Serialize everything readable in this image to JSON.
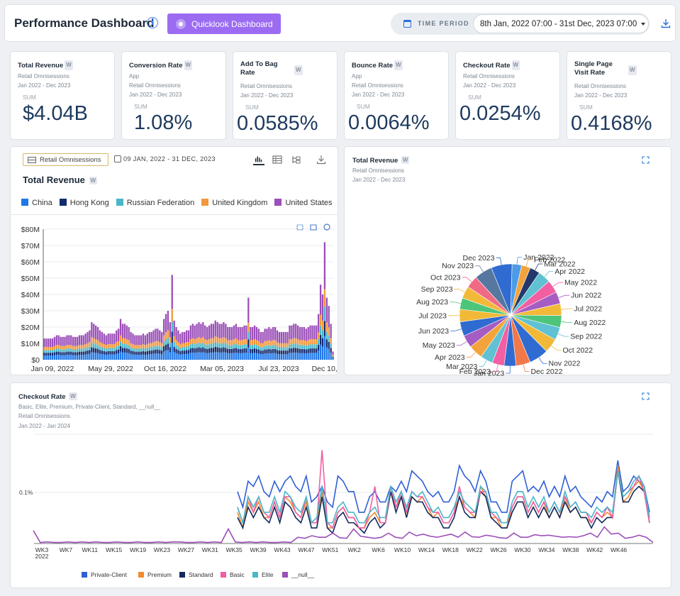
{
  "header": {
    "title": "Performance Dashboard",
    "info_icon": "info-icon",
    "quicklook_label": "Quicklook Dashboard",
    "time_period_label": "TIME PERIOD",
    "time_period_value": "8th Jan, 2022 07:00 - 31st Dec, 2023 07:00",
    "download_icon": "download-icon"
  },
  "kpis": [
    {
      "title": "Total Revenue",
      "badge": "W",
      "subs": [
        "Retail Omnisessions",
        "Jan 2022 - Dec 2023"
      ],
      "sum_label": "SUM",
      "value": "$4.04B"
    },
    {
      "title": "Conversion Rate",
      "badge": "W",
      "subs": [
        "App",
        "Retail Omnisessions",
        "Jan 2022 - Dec 2023"
      ],
      "sum_label": "SUM",
      "value": "1.08%"
    },
    {
      "title_lines": [
        "Add To Bag",
        "Rate"
      ],
      "badge": "W",
      "subs": [
        "Retail Omnisessions",
        "Jan 2022 - Dec 2023"
      ],
      "sum_label": "SUM",
      "value": "0.0585%"
    },
    {
      "title": "Bounce Rate",
      "badge": "W",
      "subs": [
        "App",
        "Retail Omnisessions",
        "Jan 2022 - Dec 2023"
      ],
      "sum_label": "SUM",
      "value": "0.0064%"
    },
    {
      "title": "Checkout Rate",
      "badge": "W",
      "subs": [
        "Retail Omnisessions",
        "Jan 2022 - Dec 2023"
      ],
      "sum_label": "SUM",
      "value": "0.0254%"
    },
    {
      "title_lines": [
        "Single Page",
        "Visit Rate"
      ],
      "badge": "W",
      "subs": [
        "Retail Omnisessions",
        "Jan 2022 - Dec 2023"
      ],
      "sum_label": "SUM",
      "value": "0.4168%"
    }
  ],
  "bar_panel": {
    "source_button": "Retail Omnisessions",
    "date_range": "09 JAN, 2022 - 31 DEC, 2023",
    "title": "Total Revenue",
    "badge": "W",
    "tools": [
      "bar-chart-icon",
      "table-icon",
      "tree-icon",
      "download-icon"
    ],
    "zoom_tools": [
      "zoom-select-icon",
      "zoom-back-icon",
      "reset-icon"
    ]
  },
  "pie_panel": {
    "title": "Total Revenue",
    "badge": "W",
    "subs": [
      "Retail Omnisessions",
      "Jan 2022 - Dec 2023"
    ]
  },
  "line_panel": {
    "title": "Checkout Rate",
    "badge": "W",
    "subs": [
      "Basic, Elite, Premium, Private-Client, Standard, __null__",
      "Retail Omnisessions",
      "Jan 2022 - Jan 2024"
    ]
  },
  "colors": {
    "accent": "#9b6cf2",
    "china": "#1f77e8",
    "hong_kong": "#132a6e",
    "russia": "#4ab7c9",
    "uk": "#f2973b",
    "us": "#9b4fb8"
  },
  "chart_data": [
    {
      "type": "bar",
      "stacked": true,
      "title": "Total Revenue",
      "ylim": [
        0,
        80
      ],
      "yticks": [
        "$0",
        "$10M",
        "$20M",
        "$30M",
        "$40M",
        "$50M",
        "$60M",
        "$70M",
        "$80M"
      ],
      "xticks": [
        "Jan 09, 2022",
        "May 29, 2022",
        "Oct 16, 2022",
        "Mar 05, 2023",
        "Jul 23, 2023",
        "Dec 10, 20"
      ],
      "legend": [
        "China",
        "Hong Kong",
        "Russian Federation",
        "United Kingdom",
        "United States"
      ],
      "totals": [
        13,
        13,
        13,
        13,
        13,
        14,
        15,
        15,
        14,
        14,
        14,
        15,
        15,
        15,
        14,
        14,
        14,
        15,
        15,
        15,
        16,
        17,
        18,
        23,
        22,
        21,
        20,
        18,
        17,
        16,
        15,
        16,
        16,
        16,
        16,
        18,
        19,
        25,
        22,
        22,
        21,
        20,
        17,
        16,
        15,
        15,
        15,
        15,
        16,
        15,
        16,
        17,
        17,
        18,
        19,
        19,
        18,
        17,
        25,
        28,
        30,
        23,
        52,
        24,
        20,
        18,
        16,
        17,
        17,
        18,
        18,
        21,
        22,
        21,
        22,
        23,
        22,
        23,
        21,
        20,
        21,
        22,
        22,
        24,
        23,
        22,
        22,
        23,
        22,
        20,
        20,
        20,
        21,
        22,
        20,
        20,
        20,
        21,
        21,
        38,
        20,
        20,
        21,
        20,
        19,
        17,
        17,
        19,
        19,
        20,
        19,
        20,
        20,
        18,
        17,
        17,
        17,
        17,
        17,
        21,
        21,
        22,
        22,
        21,
        20,
        20,
        20,
        19,
        20,
        21,
        21,
        21,
        21,
        28,
        46,
        40,
        72,
        38,
        33,
        22,
        5
      ],
      "shares": [
        0.2,
        0.13,
        0.12,
        0.15,
        0.4
      ]
    },
    {
      "type": "pie",
      "title": "Total Revenue",
      "categories": [
        "Jan 2022",
        "Feb 2022",
        "Mar 2022",
        "Apr 2022",
        "May 2022",
        "Jun 2022",
        "Jul 2022",
        "Aug 2022",
        "Sep 2022",
        "Oct 2022",
        "Nov 2022",
        "Dec 2022",
        "Jan 2023",
        "Feb 2023",
        "Mar 2023",
        "Apr 2023",
        "May 2023",
        "Jun 2023",
        "Jul 2023",
        "Aug 2023",
        "Sep 2023",
        "Oct 2023",
        "Nov 2023",
        "Dec 2023"
      ],
      "values": [
        3.2,
        3.0,
        3.4,
        4.2,
        4.3,
        4.0,
        4.0,
        4.0,
        4.3,
        4.8,
        6.5,
        4.8,
        4.0,
        4.0,
        4.2,
        4.8,
        4.2,
        4.8,
        4.2,
        3.8,
        4.1,
        4.1,
        6.0,
        7.0
      ],
      "colors": [
        "#4c9be8",
        "#f3a33b",
        "#23396b",
        "#5fc1d2",
        "#f25fa3",
        "#a55cc3",
        "#f2b939",
        "#4dc57a",
        "#5fc1d2",
        "#f2b939",
        "#2f6bd0",
        "#f0784a",
        "#2f6bd0",
        "#f25fa3",
        "#5fc1d2",
        "#f3a33b",
        "#a55cc3",
        "#2f6bd0",
        "#f2b939",
        "#4dc57a",
        "#f2b939",
        "#f06a86",
        "#5577a0",
        "#2f6bd0"
      ]
    },
    {
      "type": "line",
      "title": "Checkout Rate",
      "ylabel_tick": "0.1%",
      "ylim": [
        0,
        0.2
      ],
      "xticks": [
        "WK3\n2022",
        "WK7",
        "WK11",
        "WK15",
        "WK19",
        "WK23",
        "WK27",
        "WK31",
        "WK35",
        "WK39",
        "WK43",
        "WK47",
        "WK51",
        "WK2",
        "WK6",
        "WK10",
        "WK14",
        "WK18",
        "WK22",
        "WK26",
        "WK30",
        "WK34",
        "WK38",
        "WK42",
        "WK46"
      ],
      "series": [
        {
          "name": "Private-Client",
          "color": "#2f5fd6",
          "values": [
            0.1,
            0.07,
            0.12,
            0.11,
            0.13,
            0.1,
            0.09,
            0.12,
            0.1,
            0.12,
            0.13,
            0.11,
            0.1,
            0.13,
            0.08,
            0.09,
            0.11,
            0.08,
            0.07,
            0.13,
            0.12,
            0.1,
            0.1,
            0.06,
            0.06,
            0.09,
            0.1,
            0.08,
            0.08,
            0.11,
            0.1,
            0.12,
            0.1,
            0.14,
            0.13,
            0.12,
            0.1,
            0.09,
            0.1,
            0.08,
            0.08,
            0.1,
            0.15,
            0.13,
            0.12,
            0.1,
            0.14,
            0.12,
            0.08,
            0.08,
            0.06,
            0.06,
            0.12,
            0.13,
            0.14,
            0.1,
            0.11,
            0.1,
            0.12,
            0.09,
            0.11,
            0.09,
            0.13,
            0.1,
            0.11,
            0.09,
            0.08,
            0.07,
            0.09,
            0.08,
            0.1,
            0.09,
            0.16,
            0.1,
            0.11,
            0.13,
            0.12,
            0.11,
            0.06
          ]
        },
        {
          "name": "Premium",
          "color": "#f28b2c",
          "values": [
            0.06,
            0.03,
            0.08,
            0.06,
            0.08,
            0.05,
            0.05,
            0.08,
            0.05,
            0.09,
            0.08,
            0.06,
            0.05,
            0.08,
            0.04,
            0.04,
            0.1,
            0.03,
            0.03,
            0.06,
            0.07,
            0.05,
            0.05,
            0.03,
            0.03,
            0.05,
            0.06,
            0.04,
            0.04,
            0.1,
            0.07,
            0.09,
            0.06,
            0.09,
            0.08,
            0.09,
            0.07,
            0.05,
            0.06,
            0.04,
            0.04,
            0.06,
            0.09,
            0.07,
            0.06,
            0.05,
            0.11,
            0.09,
            0.05,
            0.05,
            0.03,
            0.03,
            0.07,
            0.09,
            0.09,
            0.06,
            0.08,
            0.06,
            0.08,
            0.05,
            0.07,
            0.05,
            0.09,
            0.06,
            0.07,
            0.05,
            0.05,
            0.04,
            0.06,
            0.05,
            0.06,
            0.05,
            0.15,
            0.08,
            0.09,
            0.11,
            0.12,
            0.1,
            0.04
          ]
        },
        {
          "name": "Standard",
          "color": "#132a5e",
          "values": [
            0.05,
            0.03,
            0.07,
            0.05,
            0.07,
            0.05,
            0.04,
            0.07,
            0.04,
            0.08,
            0.07,
            0.05,
            0.04,
            0.07,
            0.03,
            0.03,
            0.09,
            0.03,
            0.02,
            0.05,
            0.06,
            0.04,
            0.04,
            0.03,
            0.02,
            0.04,
            0.05,
            0.03,
            0.04,
            0.1,
            0.06,
            0.09,
            0.05,
            0.09,
            0.08,
            0.08,
            0.06,
            0.05,
            0.05,
            0.03,
            0.03,
            0.05,
            0.09,
            0.06,
            0.05,
            0.05,
            0.1,
            0.09,
            0.05,
            0.04,
            0.03,
            0.03,
            0.06,
            0.08,
            0.08,
            0.05,
            0.07,
            0.05,
            0.07,
            0.05,
            0.07,
            0.05,
            0.08,
            0.06,
            0.07,
            0.05,
            0.05,
            0.03,
            0.05,
            0.04,
            0.05,
            0.05,
            0.14,
            0.08,
            0.08,
            0.1,
            0.11,
            0.1,
            0.04
          ]
        },
        {
          "name": "Basic",
          "color": "#f25fa3",
          "values": [
            0.07,
            0.04,
            0.09,
            0.06,
            0.09,
            0.06,
            0.05,
            0.08,
            0.05,
            0.09,
            0.09,
            0.06,
            0.05,
            0.09,
            0.04,
            0.04,
            0.18,
            0.04,
            0.03,
            0.06,
            0.07,
            0.05,
            0.05,
            0.03,
            0.03,
            0.06,
            0.11,
            0.04,
            0.04,
            0.11,
            0.07,
            0.1,
            0.06,
            0.1,
            0.09,
            0.09,
            0.07,
            0.06,
            0.06,
            0.04,
            0.04,
            0.06,
            0.11,
            0.07,
            0.06,
            0.06,
            0.1,
            0.1,
            0.06,
            0.05,
            0.04,
            0.04,
            0.07,
            0.09,
            0.09,
            0.06,
            0.08,
            0.06,
            0.08,
            0.06,
            0.08,
            0.06,
            0.09,
            0.07,
            0.08,
            0.06,
            0.06,
            0.04,
            0.06,
            0.05,
            0.07,
            0.05,
            0.14,
            0.09,
            0.1,
            0.11,
            0.13,
            0.1,
            0.04
          ]
        },
        {
          "name": "Elite",
          "color": "#4ab7c9",
          "values": [
            0.07,
            0.04,
            0.09,
            0.07,
            0.09,
            0.06,
            0.06,
            0.09,
            0.06,
            0.1,
            0.09,
            0.07,
            0.06,
            0.09,
            0.04,
            0.05,
            0.11,
            0.04,
            0.04,
            0.07,
            0.08,
            0.06,
            0.06,
            0.04,
            0.04,
            0.06,
            0.07,
            0.05,
            0.05,
            0.11,
            0.08,
            0.1,
            0.07,
            0.1,
            0.09,
            0.1,
            0.08,
            0.06,
            0.07,
            0.05,
            0.05,
            0.07,
            0.1,
            0.08,
            0.07,
            0.06,
            0.11,
            0.1,
            0.06,
            0.06,
            0.04,
            0.04,
            0.08,
            0.1,
            0.1,
            0.07,
            0.09,
            0.07,
            0.09,
            0.06,
            0.08,
            0.06,
            0.1,
            0.07,
            0.08,
            0.06,
            0.06,
            0.05,
            0.07,
            0.06,
            0.07,
            0.06,
            0.14,
            0.09,
            0.1,
            0.12,
            0.13,
            0.11,
            0.05
          ]
        },
        {
          "name": "__null__",
          "color": "#9b4fb8",
          "values": [
            0.025,
            0.002,
            0.003,
            0.002,
            0.002,
            0.003,
            0.002,
            0.003,
            0.002,
            0.003,
            0.002,
            0.002,
            0.003,
            0.002,
            0.002,
            0.003,
            0.002,
            0.002,
            0.003,
            0.002,
            0.003,
            0.003,
            0.002,
            0.002,
            0.003,
            0.002,
            0.003,
            0.002,
            0.028,
            0.003,
            0.002,
            0.003,
            0.002,
            0.003,
            0.002,
            0.002,
            0.003,
            0.002,
            0.012,
            0.01,
            0.015,
            0.012,
            0.012,
            0.02,
            0.011,
            0.01,
            0.028,
            0.014,
            0.012,
            0.01,
            0.012,
            0.02,
            0.012,
            0.01,
            0.022,
            0.015,
            0.018,
            0.014,
            0.012,
            0.015,
            0.018,
            0.012,
            0.022,
            0.013,
            0.012,
            0.016,
            0.014,
            0.011,
            0.01,
            0.02,
            0.012,
            0.012,
            0.017,
            0.015,
            0.016,
            0.014,
            0.012,
            0.013,
            0.012,
            0.015,
            0.02,
            0.012,
            0.032,
            0.018,
            0.02,
            0.01,
            0.012,
            0.016,
            0.012,
            0.002
          ]
        }
      ],
      "series_offsets": [
        0,
        0,
        0,
        0,
        0,
        0
      ]
    }
  ]
}
